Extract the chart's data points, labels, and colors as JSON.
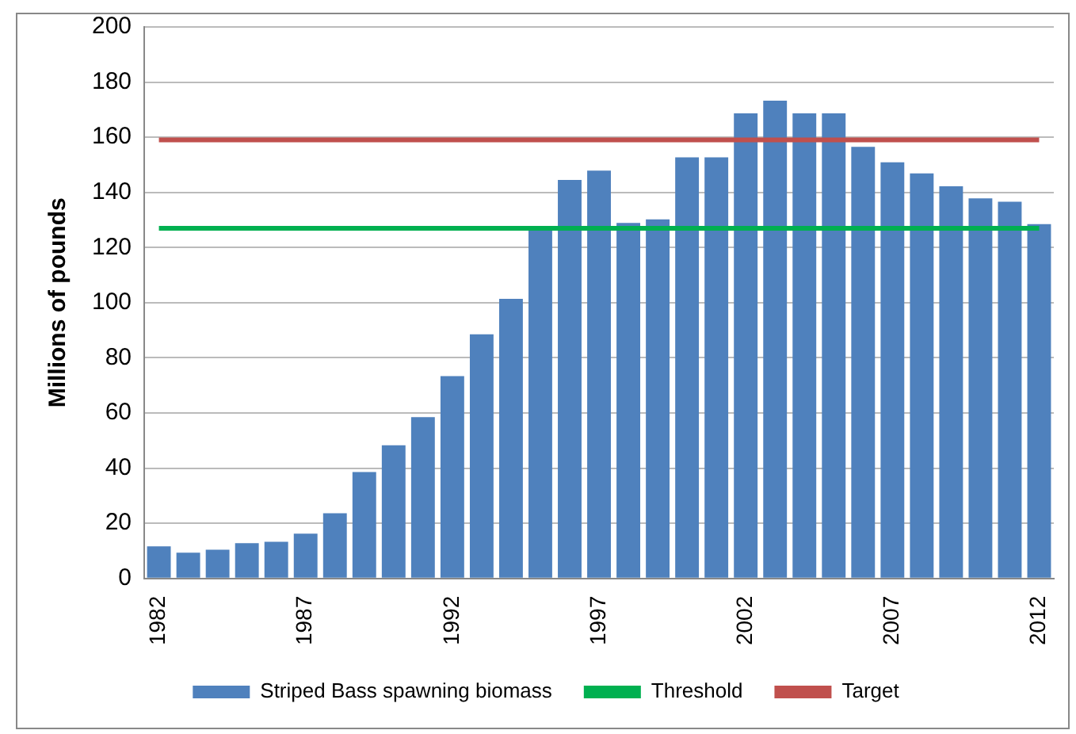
{
  "chart_data": {
    "type": "bar",
    "ylabel": "Millions of pounds",
    "categories": [
      "1982",
      null,
      null,
      null,
      null,
      "1987",
      null,
      null,
      null,
      null,
      "1992",
      null,
      null,
      null,
      null,
      "1997",
      null,
      null,
      null,
      null,
      "2002",
      null,
      null,
      null,
      null,
      "2007",
      null,
      null,
      null,
      null,
      "2012"
    ],
    "series": [
      {
        "name": "Striped Bass spawning biomass",
        "color": "#4f81bd",
        "values": [
          11.6,
          9.3,
          10.4,
          12.8,
          13.3,
          16.2,
          23.6,
          38.6,
          48.3,
          58.5,
          73.4,
          88.5,
          101.4,
          126.5,
          144.5,
          147.9,
          128.9,
          130.2,
          152.7,
          152.7,
          168.7,
          173.3,
          168.7,
          168.7,
          156.5,
          150.9,
          146.9,
          142.2,
          137.8,
          136.6,
          128.5
        ]
      },
      {
        "name": "Threshold",
        "type": "line",
        "color": "#00b050",
        "values": [
          127,
          127,
          127,
          127,
          127,
          127,
          127,
          127,
          127,
          127,
          127,
          127,
          127,
          127,
          127,
          127,
          127,
          127,
          127,
          127,
          127,
          127,
          127,
          127,
          127,
          127,
          127,
          127,
          127,
          127,
          127
        ]
      },
      {
        "name": "Target",
        "type": "line",
        "color": "#c0504d",
        "values": [
          159,
          159,
          159,
          159,
          159,
          159,
          159,
          159,
          159,
          159,
          159,
          159,
          159,
          159,
          159,
          159,
          159,
          159,
          159,
          159,
          159,
          159,
          159,
          159,
          159,
          159,
          159,
          159,
          159,
          159,
          159
        ]
      }
    ],
    "ylim": [
      0,
      200
    ],
    "yticks": [
      0,
      20,
      40,
      60,
      80,
      100,
      120,
      140,
      160,
      180,
      200
    ],
    "grid": "y",
    "legend": "bottom",
    "marker": "none"
  }
}
